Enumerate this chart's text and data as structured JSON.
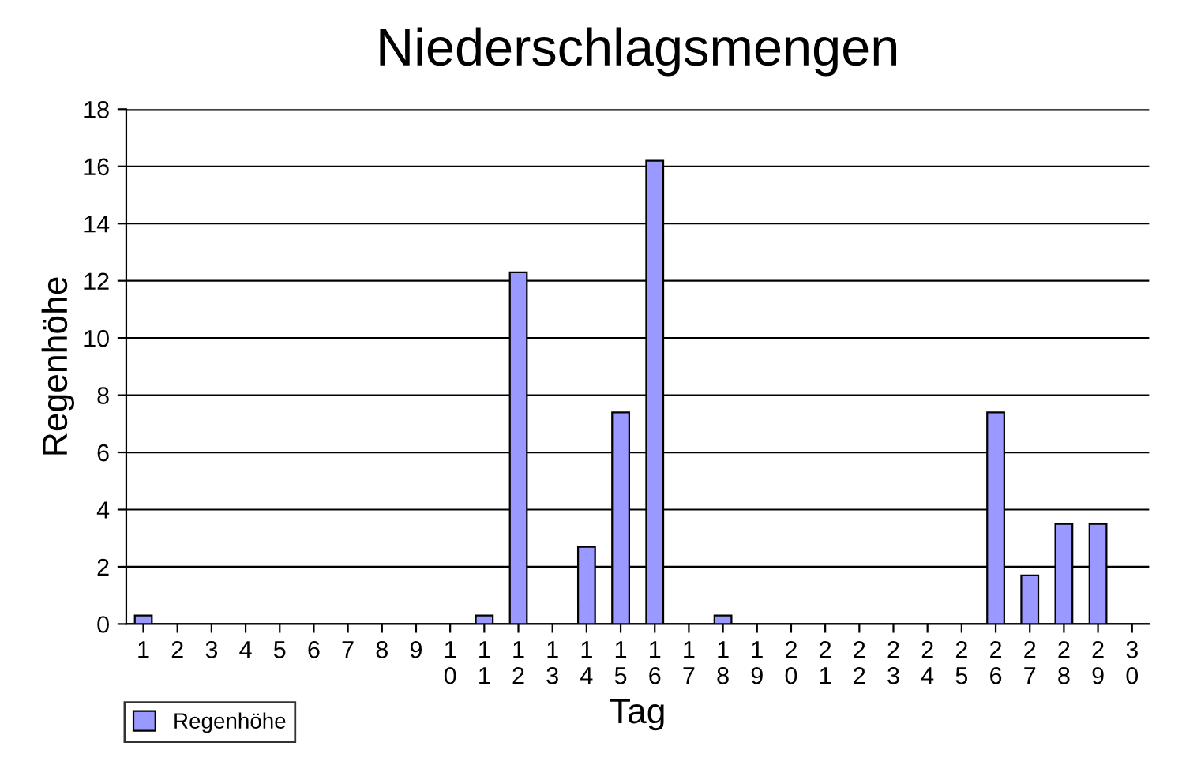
{
  "chart_data": {
    "type": "bar",
    "title": "Niederschlagsmengen",
    "xlabel": "Tag",
    "ylabel": "Regenhöhe",
    "categories": [
      "1",
      "2",
      "3",
      "4",
      "5",
      "6",
      "7",
      "8",
      "9",
      "10",
      "11",
      "12",
      "13",
      "14",
      "15",
      "16",
      "17",
      "18",
      "19",
      "20",
      "21",
      "22",
      "23",
      "24",
      "25",
      "26",
      "27",
      "28",
      "29",
      "30"
    ],
    "series": [
      {
        "name": "Regenhöhe",
        "color": "#9999ff",
        "values": [
          0.3,
          0,
          0,
          0,
          0,
          0,
          0,
          0,
          0,
          0,
          0.3,
          12.3,
          0,
          2.7,
          7.4,
          16.2,
          0,
          0.3,
          0,
          0,
          0,
          0,
          0,
          0,
          0,
          7.4,
          1.7,
          3.5,
          3.5,
          0
        ]
      }
    ],
    "ylim": [
      0,
      18
    ],
    "yticks": [
      0,
      2,
      4,
      6,
      8,
      10,
      12,
      14,
      16,
      18
    ],
    "grid": "y",
    "legend": "bottom left"
  }
}
